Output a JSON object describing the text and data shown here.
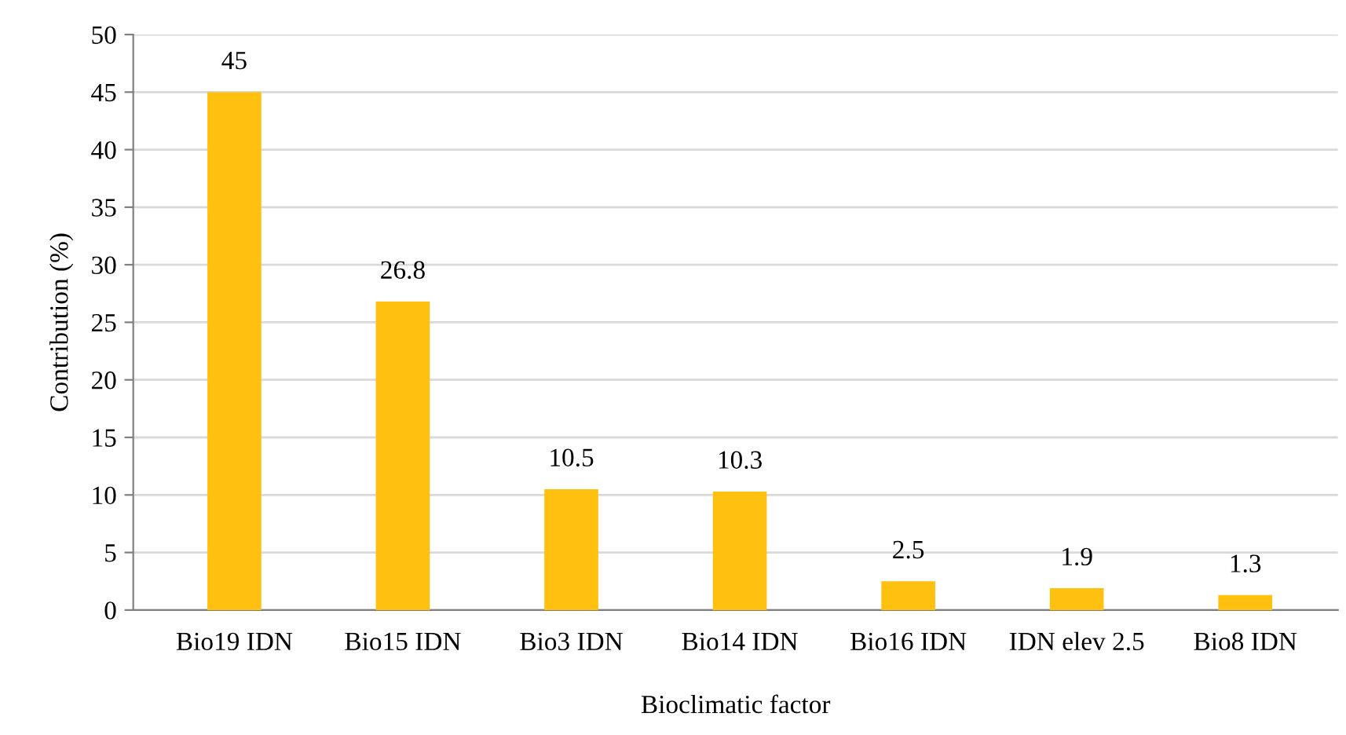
{
  "chart_data": {
    "type": "bar",
    "xlabel": "Bioclimatic factor",
    "ylabel": "Contribution (%)",
    "categories": [
      "Bio19 IDN",
      "Bio15 IDN",
      "Bio3 IDN",
      "Bio14 IDN",
      "Bio16 IDN",
      "IDN elev 2.5",
      "Bio8 IDN"
    ],
    "values": [
      45,
      26.8,
      10.5,
      10.3,
      2.5,
      1.9,
      1.3
    ],
    "color": "#ffc00f",
    "ylim": [
      0,
      50
    ],
    "yticks": [
      0,
      5,
      10,
      15,
      20,
      25,
      30,
      35,
      40,
      45,
      50
    ],
    "grid": "y",
    "data_labels": true
  }
}
